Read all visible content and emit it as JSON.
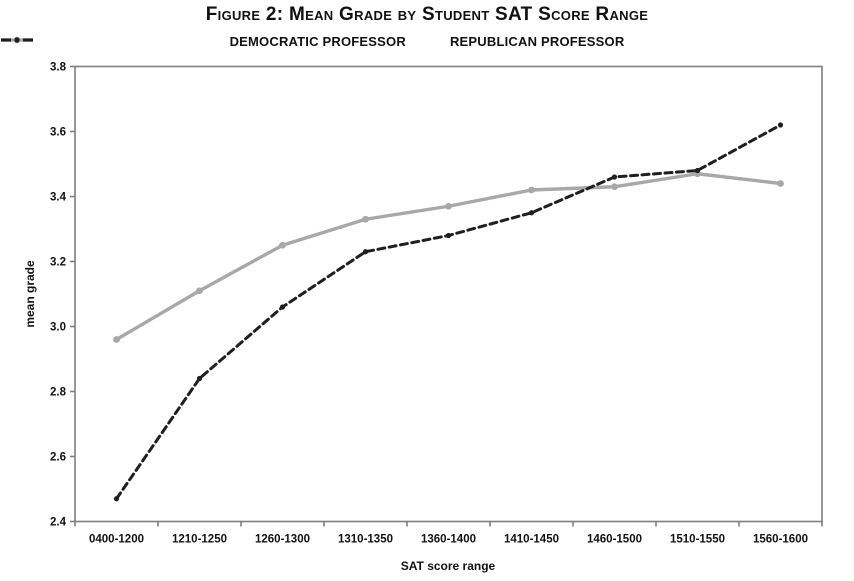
{
  "page": {
    "title": "Figure 2: Mean Grade by Student SAT Score Range"
  },
  "legend": {
    "items": [
      {
        "label": "DEMOCRATIC PROFESSOR",
        "color": "#a8a8a8",
        "style": "solid"
      },
      {
        "label": "REPUBLICAN PROFESSOR",
        "color": "#1f1f1f",
        "style": "dashed"
      }
    ]
  },
  "chart_data": {
    "type": "line",
    "title": "Figure 2: Mean Grade by Student SAT Score Range",
    "xlabel": "SAT score range",
    "ylabel": "mean grade",
    "categories": [
      "0400-1200",
      "1210-1250",
      "1260-1300",
      "1310-1350",
      "1360-1400",
      "1410-1450",
      "1460-1500",
      "1510-1550",
      "1560-1600"
    ],
    "series": [
      {
        "name": "DEMOCRATIC PROFESSOR",
        "color": "#a8a8a8",
        "line_style": "solid",
        "values": [
          2.96,
          3.11,
          3.25,
          3.33,
          3.37,
          3.42,
          3.43,
          3.47,
          3.44
        ]
      },
      {
        "name": "REPUBLICAN PROFESSOR",
        "color": "#1f1f1f",
        "line_style": "dashed",
        "values": [
          2.47,
          2.84,
          3.06,
          3.23,
          3.28,
          3.35,
          3.46,
          3.48,
          3.62
        ]
      }
    ],
    "ylim": [
      2.4,
      3.8
    ],
    "yticks": [
      2.4,
      2.6,
      2.8,
      3.0,
      3.2,
      3.4,
      3.6,
      3.8
    ],
    "grid": false,
    "legend_position": "top"
  },
  "colors": {
    "axis": "#7f7f7f",
    "text": "#111111",
    "background": "#ffffff"
  }
}
